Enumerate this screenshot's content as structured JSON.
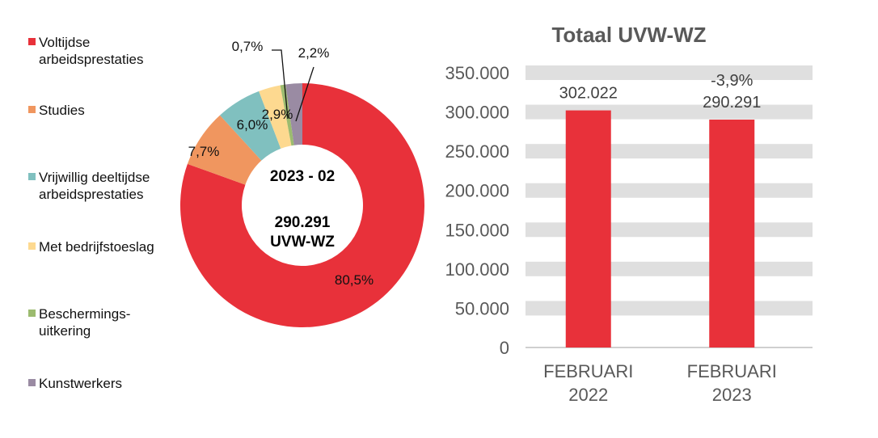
{
  "chart_data": [
    {
      "type": "pie",
      "donut": true,
      "center_text": {
        "period": "2023 - 02",
        "total": "290.291",
        "unit": "UVW-WZ"
      },
      "legend_position": "left",
      "slices": [
        {
          "name": "Voltijdse arbeidsprestaties",
          "legend_lines": [
            "Voltijdse",
            "arbeidsprestaties"
          ],
          "value": 80.5,
          "label": "80,5%",
          "color": "#E8313A"
        },
        {
          "name": "Studies",
          "legend_lines": [
            "Studies"
          ],
          "value": 7.7,
          "label": "7,7%",
          "color": "#F0965F"
        },
        {
          "name": "Vrijwillig deeltijdse arbeidsprestaties",
          "legend_lines": [
            "Vrijwillig deeltijdse",
            "arbeidsprestaties"
          ],
          "value": 6.0,
          "label": "6,0%",
          "color": "#80C0BF"
        },
        {
          "name": "Met bedrijfstoeslag",
          "legend_lines": [
            "Met bedrijfstoeslag"
          ],
          "value": 2.9,
          "label": "2,9%",
          "color": "#FDD990"
        },
        {
          "name": "Beschermingsuitkering",
          "legend_lines": [
            "Beschermings-",
            "uitkering"
          ],
          "value": 0.7,
          "label": "0,7%",
          "color": "#9CBB6F"
        },
        {
          "name": "Kunstwerkers",
          "legend_lines": [
            "Kunstwerkers"
          ],
          "value": 2.2,
          "label": "2,2%",
          "color": "#9A8BA3"
        }
      ]
    },
    {
      "type": "bar",
      "title": "Totaal UVW-WZ",
      "categories": [
        [
          "FEBRUARI",
          "2022"
        ],
        [
          "FEBRUARI",
          "2023"
        ]
      ],
      "values": [
        302022,
        290291
      ],
      "data_labels": [
        "302.022",
        "290.291"
      ],
      "change_label": "-3,9%",
      "ylim": [
        0,
        350000
      ],
      "yticks": [
        0,
        50000,
        100000,
        150000,
        200000,
        250000,
        300000,
        350000
      ],
      "ytick_labels": [
        "0",
        "50.000",
        "100.000",
        "150.000",
        "200.000",
        "250.000",
        "300.000",
        "350.000"
      ],
      "grid": true,
      "bar_color": "#E8313A",
      "grid_color": "#DFDFDF"
    }
  ]
}
